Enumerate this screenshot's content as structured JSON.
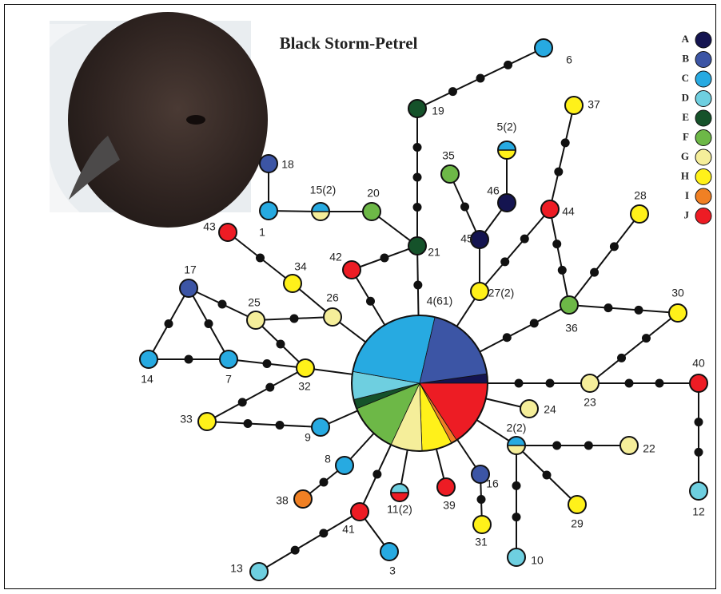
{
  "title": "Black Storm-Petrel",
  "legend": [
    {
      "letter": "A",
      "color": "#141450"
    },
    {
      "letter": "B",
      "color": "#3c55a5"
    },
    {
      "letter": "C",
      "color": "#27aae1"
    },
    {
      "letter": "D",
      "color": "#6ecfe0"
    },
    {
      "letter": "E",
      "color": "#15522a"
    },
    {
      "letter": "F",
      "color": "#6db847"
    },
    {
      "letter": "G",
      "color": "#f5ee9a"
    },
    {
      "letter": "H",
      "color": "#fff11a"
    },
    {
      "letter": "I",
      "color": "#f08024"
    },
    {
      "letter": "J",
      "color": "#ed1c24"
    }
  ],
  "nodes": [
    {
      "label": "4(61)"
    },
    {
      "label": "1"
    },
    {
      "label": "18"
    },
    {
      "label": "15(2)"
    },
    {
      "label": "20"
    },
    {
      "label": "21"
    },
    {
      "label": "19"
    },
    {
      "label": "6"
    },
    {
      "label": "35"
    },
    {
      "label": "46"
    },
    {
      "label": "5(2)"
    },
    {
      "label": "45"
    },
    {
      "label": "27(2)"
    },
    {
      "label": "44"
    },
    {
      "label": "37"
    },
    {
      "label": "28"
    },
    {
      "label": "36"
    },
    {
      "label": "30"
    },
    {
      "label": "23"
    },
    {
      "label": "40"
    },
    {
      "label": "12"
    },
    {
      "label": "24"
    },
    {
      "label": "2(2)"
    },
    {
      "label": "22"
    },
    {
      "label": "29"
    },
    {
      "label": "10"
    },
    {
      "label": "16"
    },
    {
      "label": "31"
    },
    {
      "label": "39"
    },
    {
      "label": "11(2)"
    },
    {
      "label": "41"
    },
    {
      "label": "3"
    },
    {
      "label": "13"
    },
    {
      "label": "38"
    },
    {
      "label": "8"
    },
    {
      "label": "9"
    },
    {
      "label": "33"
    },
    {
      "label": "32"
    },
    {
      "label": "14"
    },
    {
      "label": "7"
    },
    {
      "label": "17"
    },
    {
      "label": "25"
    },
    {
      "label": "26"
    },
    {
      "label": "34"
    },
    {
      "label": "43"
    },
    {
      "label": "42"
    }
  ]
}
